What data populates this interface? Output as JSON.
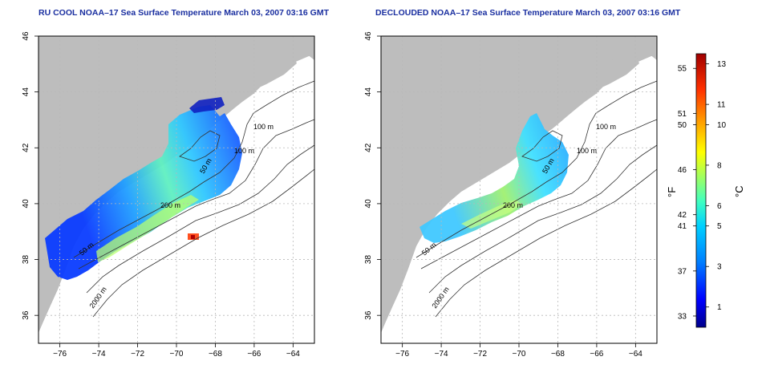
{
  "left_panel": {
    "title": "RU COOL NOAA–17 Sea Surface Temperature March 03, 2007 03:16 GMT",
    "contours": [
      {
        "label": "100 m"
      },
      {
        "label": "100 m"
      },
      {
        "label": "50 m"
      },
      {
        "label": "200 m"
      },
      {
        "label": "50 m"
      },
      {
        "label": "2000 m"
      }
    ]
  },
  "right_panel": {
    "title": "DECLOUDED NOAA–17 Sea Surface Temperature March 03, 2007 03:16 GMT",
    "contours": [
      {
        "label": "100 m"
      },
      {
        "label": "100 m"
      },
      {
        "label": "50 m"
      },
      {
        "label": "200 m"
      },
      {
        "label": "50 m"
      },
      {
        "label": "2000 m"
      }
    ]
  },
  "axes": {
    "x_ticks": [
      "−76",
      "−74",
      "−72",
      "−70",
      "−68",
      "−66",
      "−64"
    ],
    "y_ticks": [
      "36",
      "38",
      "40",
      "42",
      "44",
      "46"
    ],
    "lon_range": [
      -77.1,
      -62.9
    ],
    "lat_range": [
      35.0,
      46.0
    ]
  },
  "colorbar": {
    "fahrenheit_unit": "°F",
    "celsius_unit": "°C",
    "fahrenheit_ticks": [
      "33",
      "37",
      "41",
      "42",
      "46",
      "50",
      "51",
      "55"
    ],
    "celsius_ticks": [
      "1",
      "3",
      "5",
      "6",
      "8",
      "10",
      "11",
      "13"
    ],
    "range_c": [
      0,
      13.5
    ],
    "colors": [
      "#00008b",
      "#0000ff",
      "#0080ff",
      "#00d0ff",
      "#40ffc0",
      "#a0ff60",
      "#ffff00",
      "#ffa000",
      "#ff3000",
      "#a00000"
    ]
  },
  "colors": {
    "land": "#bdbdbd",
    "ocean": "#ffffff",
    "grid": "#b8b8b8",
    "title": "#1a2fa0"
  }
}
